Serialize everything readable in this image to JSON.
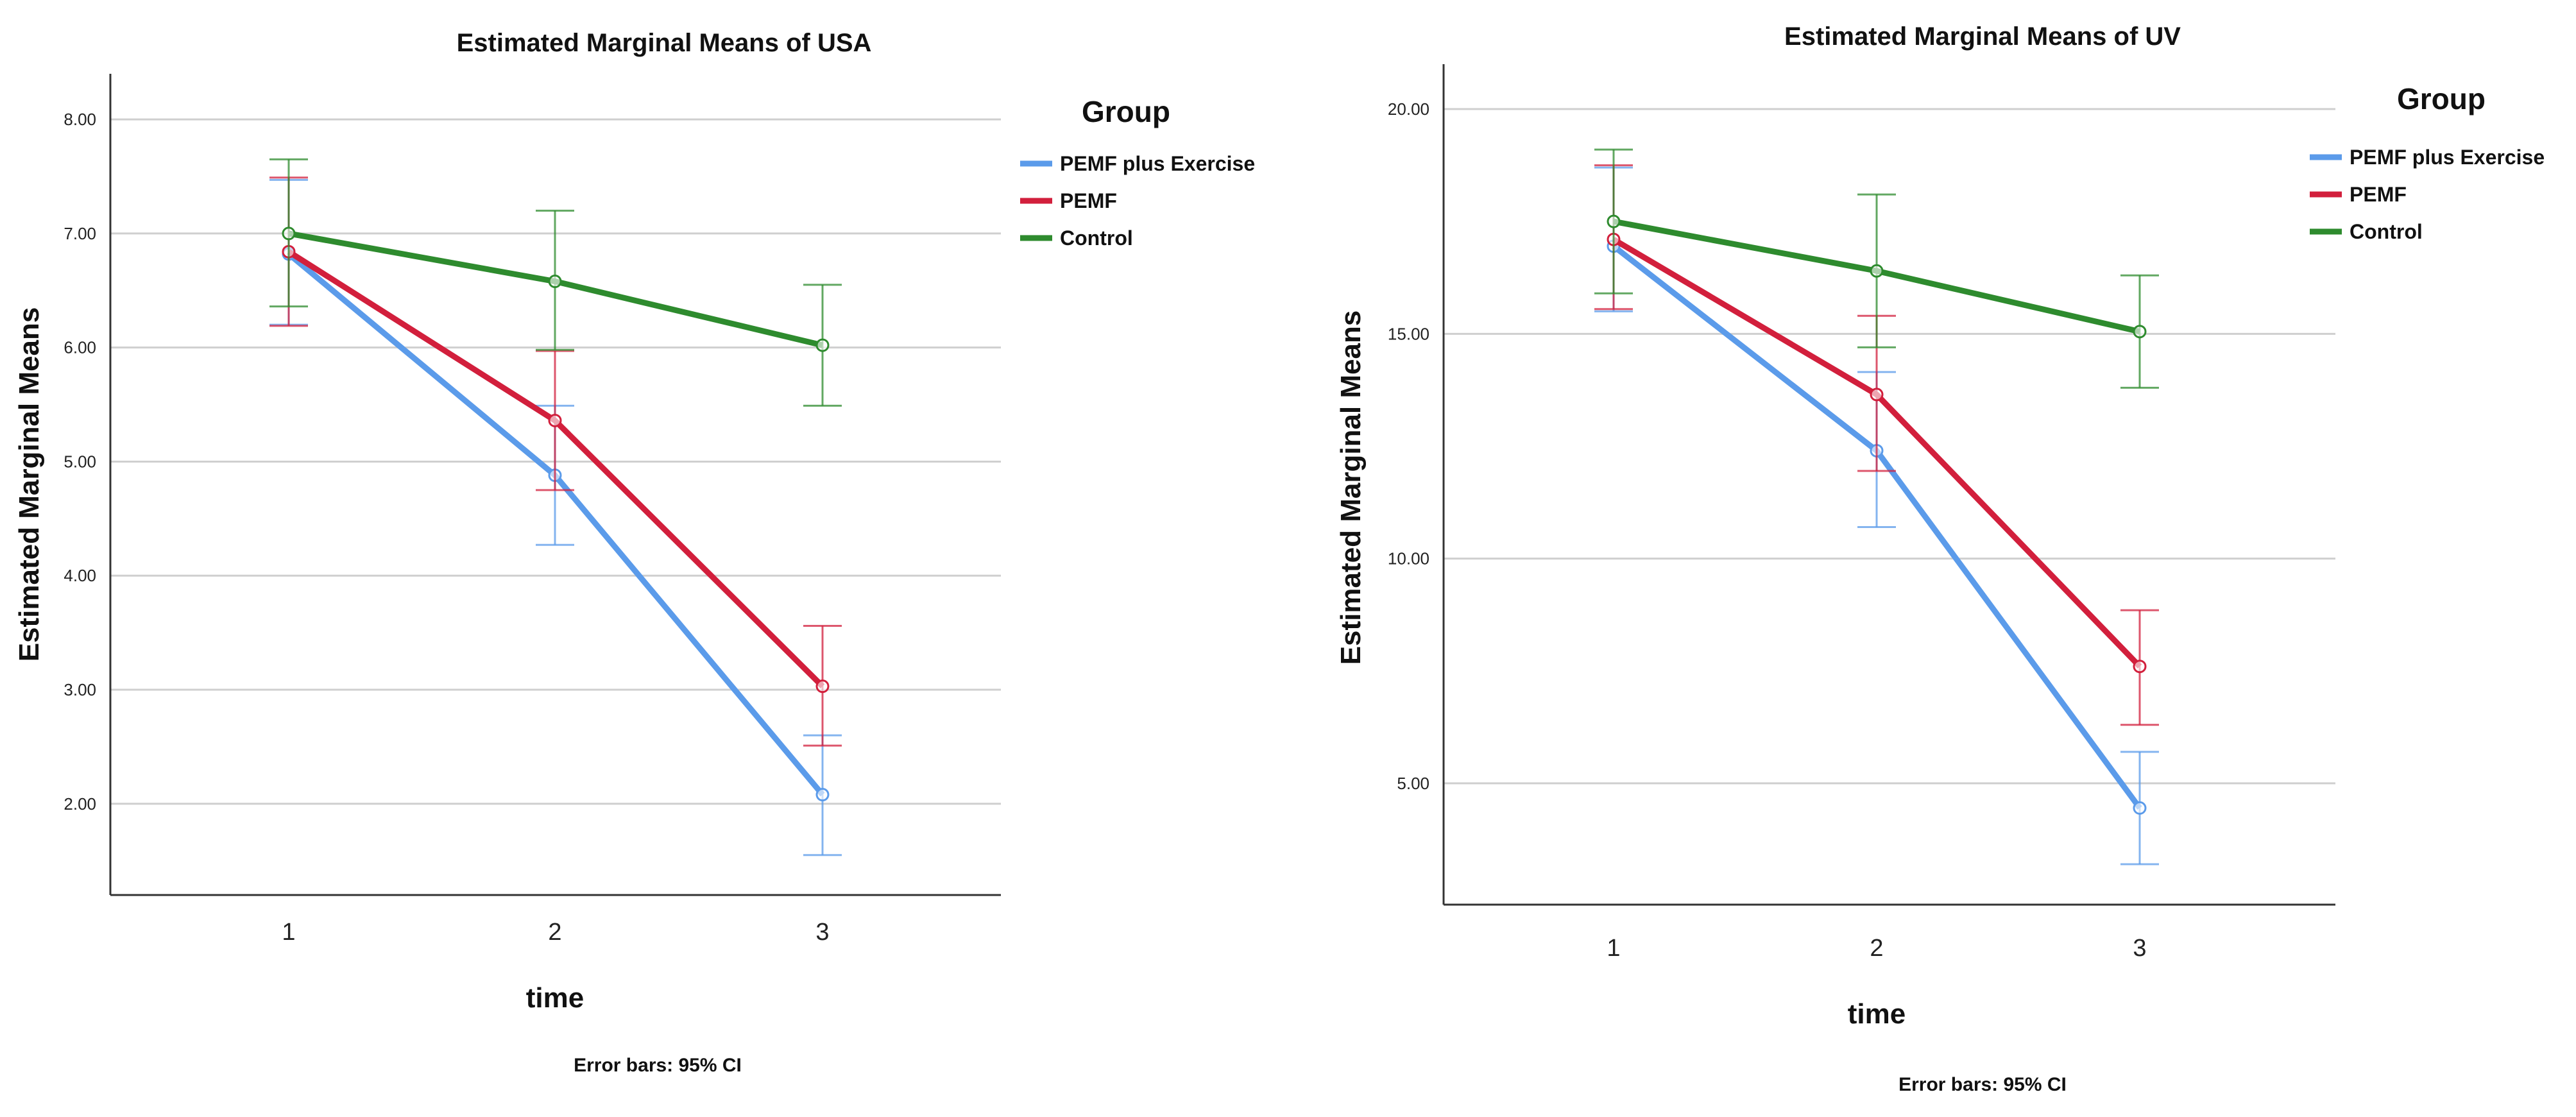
{
  "chart_data": [
    {
      "type": "line",
      "title": "Estimated Marginal Means of USA",
      "xlabel": "time",
      "ylabel": "Estimated Marginal Means",
      "note": "Error bars: 95% CI",
      "categories": [
        "1",
        "2",
        "3"
      ],
      "ylim": [
        1.2,
        8.4
      ],
      "yticks": [
        "2.00",
        "3.00",
        "4.00",
        "5.00",
        "6.00",
        "7.00",
        "8.00"
      ],
      "legend_title": "Group",
      "legend_position": "top-right",
      "series": [
        {
          "name": "PEMF plus Exercise",
          "color": "#5b9bea",
          "values": [
            6.82,
            4.88,
            2.08
          ],
          "ci_low": [
            6.2,
            4.27,
            1.55
          ],
          "ci_high": [
            7.47,
            5.49,
            2.6
          ]
        },
        {
          "name": "PEMF",
          "color": "#d21f3c",
          "values": [
            6.84,
            5.36,
            3.03
          ],
          "ci_low": [
            6.19,
            4.75,
            2.51
          ],
          "ci_high": [
            7.49,
            5.97,
            3.56
          ]
        },
        {
          "name": "Control",
          "color": "#2e8b2e",
          "values": [
            7.0,
            6.58,
            6.02
          ],
          "ci_low": [
            6.36,
            5.98,
            5.49
          ],
          "ci_high": [
            7.65,
            7.2,
            6.55
          ]
        }
      ]
    },
    {
      "type": "line",
      "title": "Estimated Marginal Means of UV",
      "xlabel": "time",
      "ylabel": "Estimated Marginal Means",
      "note": "Error bars: 95% CI",
      "categories": [
        "1",
        "2",
        "3"
      ],
      "ylim": [
        2.3,
        21.0
      ],
      "yticks": [
        "5.00",
        "10.00",
        "15.00",
        "20.00"
      ],
      "legend_title": "Group",
      "legend_position": "top-right",
      "series": [
        {
          "name": "PEMF plus Exercise",
          "color": "#5b9bea",
          "values": [
            16.95,
            12.4,
            4.45
          ],
          "ci_low": [
            15.5,
            10.7,
            3.2
          ],
          "ci_high": [
            18.7,
            14.15,
            5.7
          ]
        },
        {
          "name": "PEMF",
          "color": "#d21f3c",
          "values": [
            17.1,
            13.65,
            7.6
          ],
          "ci_low": [
            15.55,
            11.95,
            6.3
          ],
          "ci_high": [
            18.75,
            15.4,
            8.85
          ]
        },
        {
          "name": "Control",
          "color": "#2e8b2e",
          "values": [
            17.5,
            16.4,
            15.05
          ],
          "ci_low": [
            15.9,
            14.7,
            13.8
          ],
          "ci_high": [
            19.1,
            18.1,
            16.3
          ]
        }
      ]
    }
  ]
}
